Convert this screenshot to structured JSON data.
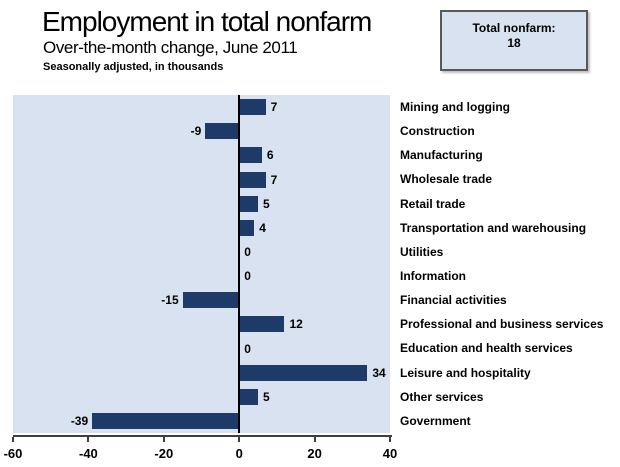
{
  "chart_data": {
    "type": "bar",
    "orientation": "horizontal",
    "title": "Employment in total nonfarm",
    "subtitle": "Over-the-month change, June 2011",
    "note": "Seasonally adjusted, in thousands",
    "categories": [
      "Mining and logging",
      "Construction",
      "Manufacturing",
      "Wholesale trade",
      "Retail trade",
      "Transportation and warehousing",
      "Utilities",
      "Information",
      "Financial activities",
      "Professional and business services",
      "Education and health services",
      "Leisure and hospitality",
      "Other services",
      "Government"
    ],
    "values": [
      7,
      -9,
      6,
      7,
      5,
      4,
      0,
      0,
      -15,
      12,
      0,
      34,
      5,
      -39
    ],
    "xlim": [
      -60,
      40
    ],
    "xticks": [
      -60,
      -40,
      -20,
      0,
      20,
      40
    ],
    "grid": false,
    "legend": false,
    "bar_color": "#1e3a68",
    "plot_bg": "#d9e2f0",
    "annotation": {
      "label": "Total nonfarm:",
      "value": "18"
    }
  }
}
